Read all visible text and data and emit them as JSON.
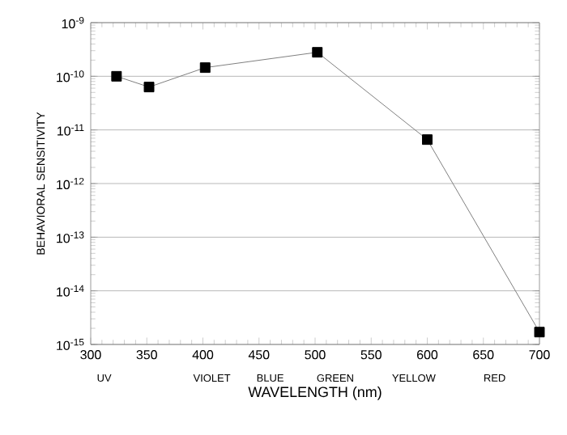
{
  "chart_data": {
    "type": "line",
    "xlabel": "WAVELENGTH (nm)",
    "ylabel": "BEHAVIORAL SENSITIVITY",
    "x": [
      323,
      352,
      402,
      502,
      600,
      700
    ],
    "series": [
      {
        "color": "#000000",
        "values": [
          1e-10,
          6.3e-11,
          1.45e-10,
          2.8e-10,
          6.6e-12,
          1.7e-15
        ]
      }
    ],
    "xlim": [
      300,
      700
    ],
    "xticks": [
      300,
      350,
      400,
      450,
      500,
      550,
      600,
      650,
      700
    ],
    "ylim": [
      1e-15,
      1e-09
    ],
    "yticks": [
      {
        "value": 1e-15,
        "label": "10$^{-15}$"
      },
      {
        "value": 1e-14,
        "label": "10$^{-14}$"
      },
      {
        "value": 1e-13,
        "label": "10$^{-13}$"
      },
      {
        "value": 1e-12,
        "label": "10$^{-12}$"
      },
      {
        "value": 1e-11,
        "label": "10$^{-11}$"
      },
      {
        "value": 1e-10,
        "label": "10$^{-10}$"
      },
      {
        "value": 1e-09,
        "label": "10$^{-9}$"
      }
    ],
    "log": "y",
    "grid": "y",
    "marker": "square",
    "line_style": "solid",
    "annotations": [
      "UV",
      "VIOLET",
      "BLUE",
      "GREEN",
      "YELLOW",
      "RED"
    ]
  }
}
